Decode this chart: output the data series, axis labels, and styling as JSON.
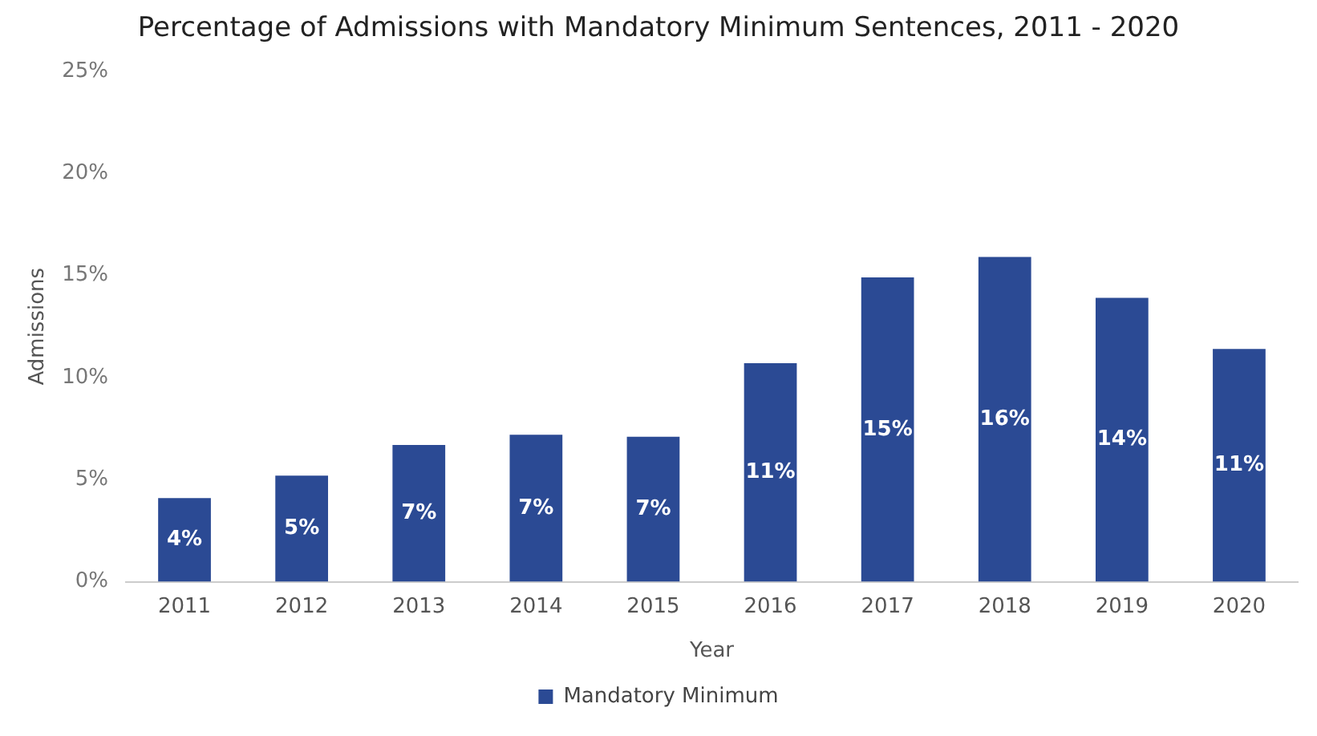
{
  "chart_data": {
    "type": "bar",
    "title": "Percentage of Admissions with Mandatory Minimum Sentences, 2011 - 2020",
    "xlabel": "Year",
    "ylabel": "Admissions",
    "categories": [
      "2011",
      "2012",
      "2013",
      "2014",
      "2015",
      "2016",
      "2017",
      "2018",
      "2019",
      "2020"
    ],
    "series": [
      {
        "name": "Mandatory Minimum",
        "color": "#2b4a94",
        "values": [
          4.1,
          5.2,
          6.7,
          7.2,
          7.1,
          10.7,
          14.9,
          15.9,
          13.9,
          11.4
        ],
        "value_labels": [
          "4%",
          "5%",
          "7%",
          "7%",
          "7%",
          "11%",
          "15%",
          "16%",
          "14%",
          "11%"
        ]
      }
    ],
    "ylim": [
      0,
      25
    ],
    "yticks": [
      {
        "value": 0,
        "label": "0%"
      },
      {
        "value": 5,
        "label": "5%"
      },
      {
        "value": 10,
        "label": "10%"
      },
      {
        "value": 15,
        "label": "15%"
      },
      {
        "value": 20,
        "label": "20%"
      },
      {
        "value": 25,
        "label": "25%"
      }
    ],
    "grid": false,
    "legend": "bottom"
  }
}
